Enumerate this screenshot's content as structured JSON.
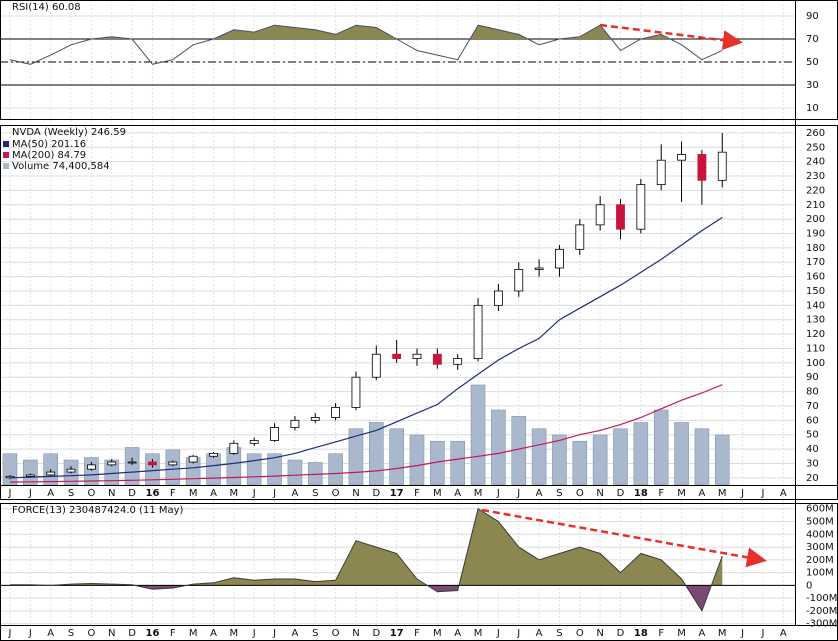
{
  "chart_data": [
    {
      "type": "rsi",
      "title": "RSI(14) 60.08",
      "color": "#4a4f63",
      "fill": "#8c8650",
      "values": [
        52,
        48,
        56,
        65,
        70,
        72,
        70,
        48,
        52,
        65,
        70,
        78,
        76,
        82,
        80,
        78,
        74,
        82,
        80,
        70,
        60,
        56,
        52,
        82,
        78,
        74,
        65,
        70,
        72,
        82,
        60,
        70,
        74,
        65,
        52,
        60.08,
        null,
        null,
        null
      ],
      "ylim": [
        0,
        100
      ],
      "yticks": [
        90,
        70,
        50,
        30,
        10
      ],
      "ref_lines": [
        70,
        50,
        30
      ],
      "grid": true
    },
    {
      "type": "candlestick",
      "title": "NVDA (Weekly) 246.59",
      "categories": [
        "J",
        "J",
        "A",
        "S",
        "O",
        "N",
        "D",
        "16",
        "F",
        "M",
        "A",
        "M",
        "J",
        "J",
        "A",
        "S",
        "O",
        "N",
        "D",
        "17",
        "F",
        "M",
        "A",
        "M",
        "J",
        "J",
        "A",
        "S",
        "O",
        "N",
        "D",
        "18",
        "F",
        "M",
        "A",
        "M",
        "J",
        "J",
        "A"
      ],
      "open": [
        20,
        21,
        22,
        24,
        26,
        29,
        31,
        31,
        29,
        31,
        35,
        37,
        44,
        46,
        55,
        60,
        62,
        69,
        90,
        106,
        103,
        106,
        99,
        103,
        140,
        150,
        165,
        166,
        179,
        196,
        210,
        193,
        224,
        241,
        245,
        227,
        null,
        null,
        null
      ],
      "high": [
        22,
        23,
        26,
        28,
        31,
        33,
        34,
        33,
        32,
        36,
        38,
        46,
        48,
        58,
        63,
        65,
        72,
        94,
        112,
        116,
        110,
        110,
        106,
        145,
        155,
        170,
        172,
        182,
        200,
        216,
        214,
        228,
        252,
        254,
        248,
        260,
        null,
        null,
        null
      ],
      "low": [
        19,
        20,
        21,
        23,
        25,
        28,
        29,
        27,
        28,
        30,
        34,
        36,
        42,
        45,
        53,
        58,
        60,
        67,
        88,
        100,
        98,
        96,
        95,
        101,
        136,
        146,
        160,
        160,
        175,
        192,
        186,
        190,
        220,
        212,
        210,
        222,
        null,
        null,
        null
      ],
      "close": [
        21,
        22,
        24,
        26,
        29,
        31,
        31,
        29,
        31,
        35,
        37,
        44,
        46,
        55,
        60,
        62,
        69,
        90,
        106,
        103,
        106,
        99,
        103,
        140,
        150,
        165,
        166,
        179,
        196,
        210,
        193,
        224,
        241,
        245,
        227,
        246.59,
        null,
        null,
        null
      ],
      "up_color": "#ffffff",
      "down_color": "#c8143c",
      "series": [
        {
          "name": "MA(50) 201.16",
          "type": "line",
          "color": "#1f2a80",
          "values": [
            20,
            20.5,
            21,
            21.5,
            22,
            23,
            24,
            25,
            26,
            27,
            28.5,
            30,
            32,
            34,
            37,
            41,
            45,
            49,
            53,
            59,
            65,
            71,
            82,
            92,
            102,
            110,
            117,
            130,
            138,
            146,
            154,
            163,
            172,
            182,
            192,
            201.16,
            null,
            null,
            null
          ]
        },
        {
          "name": "MA(200) 84.79",
          "type": "line",
          "color": "#c2185b",
          "values": [
            17,
            17.2,
            17.4,
            17.6,
            17.8,
            18,
            18.3,
            18.6,
            19,
            19.4,
            19.8,
            20.2,
            20.7,
            21.2,
            21.8,
            22.4,
            23,
            23.8,
            24.8,
            26.5,
            28.5,
            31,
            33,
            35,
            37,
            40,
            43,
            46,
            50,
            53,
            57,
            62,
            68,
            74,
            79,
            84.79,
            null,
            null,
            null
          ]
        },
        {
          "name": "Volume 74,400,584",
          "type": "volume",
          "color": "#a9b8cc",
          "values": [
            46500000,
            37200000,
            46500000,
            37200000,
            40900000,
            37200000,
            55800000,
            46500000,
            52100000,
            40900000,
            46500000,
            55800000,
            46500000,
            46500000,
            37200000,
            33500000,
            46500000,
            83700000,
            93000000,
            83700000,
            74400000,
            65100000,
            65100000,
            148800000,
            111600000,
            102300000,
            83700000,
            74400000,
            65100000,
            74400000,
            83700000,
            93000000,
            111600000,
            93000000,
            83700000,
            74400584,
            null,
            null,
            null
          ]
        }
      ],
      "ylim": [
        15,
        265.5
      ],
      "yticks": [
        260,
        250,
        240,
        230,
        220,
        210,
        200,
        190,
        180,
        170,
        160,
        150,
        140,
        130,
        120,
        110,
        100,
        90,
        80,
        70,
        60,
        50,
        40,
        30,
        20
      ],
      "grid": true
    },
    {
      "type": "force",
      "title": "FORCE(13) 230487424.0 (11 May)",
      "color": "#3a3a3a",
      "fill": "#8c8650",
      "neg_fill": "#7b4a73",
      "categories": [
        "J",
        "J",
        "A",
        "S",
        "O",
        "N",
        "D",
        "16",
        "F",
        "M",
        "A",
        "M",
        "J",
        "J",
        "A",
        "S",
        "O",
        "N",
        "D",
        "17",
        "F",
        "M",
        "A",
        "M",
        "J",
        "J",
        "A",
        "S",
        "O",
        "N",
        "D",
        "18",
        "F",
        "M",
        "A",
        "M",
        "J",
        "J",
        "A"
      ],
      "values": [
        5000000,
        5000000,
        0,
        10000000,
        15000000,
        10000000,
        5000000,
        -30000000,
        -20000000,
        10000000,
        20000000,
        60000000,
        40000000,
        50000000,
        50000000,
        30000000,
        40000000,
        350000000,
        300000000,
        250000000,
        50000000,
        -50000000,
        -40000000,
        600000000,
        500000000,
        300000000,
        200000000,
        250000000,
        300000000,
        250000000,
        100000000,
        250000000,
        200000000,
        50000000,
        -200000000,
        230487424,
        null,
        null,
        null
      ],
      "ylim": [
        -310000000,
        645000000
      ],
      "yticks": [
        {
          "value": 600000000,
          "label": "600M"
        },
        {
          "value": 500000000,
          "label": "500M"
        },
        {
          "value": 400000000,
          "label": "400M"
        },
        {
          "value": 300000000,
          "label": "300M"
        },
        {
          "value": 200000000,
          "label": "200M"
        },
        {
          "value": 100000000,
          "label": "100M"
        },
        0,
        {
          "value": -100000000,
          "label": "-100M"
        },
        {
          "value": -200000000,
          "label": "-200M"
        },
        {
          "value": -300000000,
          "label": "-300M"
        }
      ],
      "grid": true
    }
  ]
}
